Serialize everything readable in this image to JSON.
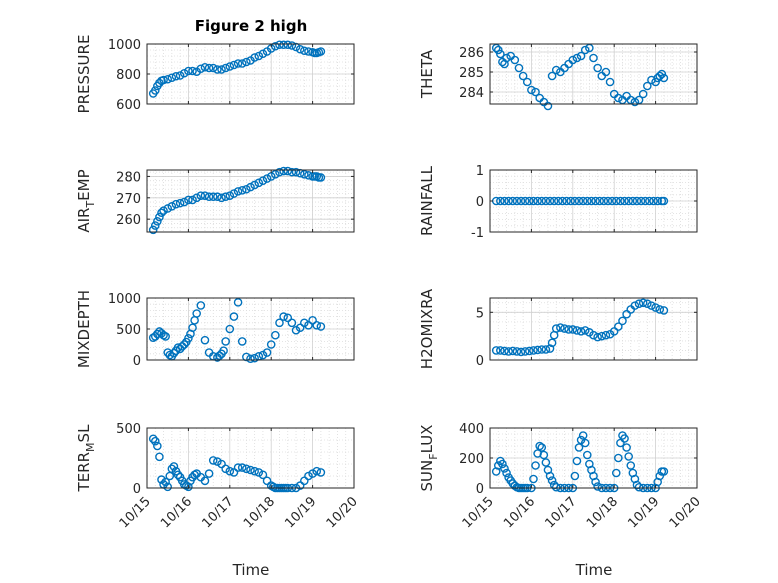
{
  "figure": {
    "title": "Figure 2 high"
  },
  "colors": {
    "marker": "#0072BD",
    "axis": "#262626",
    "grid": "#dcdcdc"
  },
  "chart_data": [
    {
      "id": "pressure",
      "type": "scatter",
      "title": "Figure 2 high",
      "xlabel": "",
      "ylabel": "PRESSURE",
      "xlim": [
        0,
        5
      ],
      "ylim": [
        600,
        1000
      ],
      "yticks": [
        600,
        800,
        1000
      ],
      "ytick_labels": [
        "600",
        "800",
        "1000"
      ],
      "grid": true,
      "x": [
        0.15,
        0.2,
        0.25,
        0.3,
        0.35,
        0.4,
        0.5,
        0.6,
        0.7,
        0.8,
        0.9,
        1.0,
        1.1,
        1.2,
        1.3,
        1.4,
        1.5,
        1.6,
        1.7,
        1.8,
        1.9,
        2.0,
        2.1,
        2.2,
        2.3,
        2.4,
        2.5,
        2.6,
        2.7,
        2.8,
        2.9,
        3.0,
        3.1,
        3.2,
        3.3,
        3.4,
        3.5,
        3.6,
        3.7,
        3.8,
        3.9,
        4.0,
        4.05,
        4.1,
        4.15,
        4.2
      ],
      "y": [
        670,
        690,
        720,
        740,
        755,
        760,
        765,
        775,
        785,
        790,
        805,
        820,
        820,
        815,
        835,
        845,
        840,
        840,
        830,
        830,
        840,
        850,
        860,
        870,
        870,
        880,
        890,
        910,
        920,
        935,
        950,
        970,
        985,
        995,
        995,
        995,
        990,
        980,
        965,
        955,
        950,
        945,
        940,
        940,
        945,
        950
      ]
    },
    {
      "id": "theta",
      "type": "scatter",
      "xlabel": "",
      "ylabel": "THETA",
      "xlim": [
        0,
        5
      ],
      "ylim": [
        283.4,
        286.4
      ],
      "yticks": [
        284,
        285,
        286
      ],
      "ytick_labels": [
        "284",
        "285",
        "286"
      ],
      "grid": true,
      "x": [
        0.15,
        0.2,
        0.25,
        0.3,
        0.35,
        0.4,
        0.5,
        0.6,
        0.7,
        0.8,
        0.9,
        1.0,
        1.1,
        1.2,
        1.3,
        1.4,
        1.5,
        1.6,
        1.7,
        1.8,
        1.9,
        2.0,
        2.1,
        2.2,
        2.3,
        2.4,
        2.5,
        2.6,
        2.7,
        2.8,
        2.9,
        3.0,
        3.1,
        3.2,
        3.3,
        3.4,
        3.5,
        3.6,
        3.7,
        3.8,
        3.9,
        4.0,
        4.05,
        4.1,
        4.15,
        4.2
      ],
      "y": [
        286.2,
        286.1,
        285.9,
        285.5,
        285.4,
        285.7,
        285.8,
        285.6,
        285.2,
        284.8,
        284.5,
        284.1,
        284.0,
        283.7,
        283.5,
        283.3,
        284.8,
        285.1,
        285.0,
        285.2,
        285.4,
        285.6,
        285.7,
        285.8,
        286.1,
        286.2,
        285.7,
        285.2,
        284.8,
        285.0,
        284.5,
        283.9,
        283.7,
        283.6,
        283.8,
        283.6,
        283.5,
        283.6,
        283.9,
        284.3,
        284.6,
        284.5,
        284.7,
        284.8,
        284.9,
        284.7
      ]
    },
    {
      "id": "air_temp",
      "type": "scatter",
      "xlabel": "",
      "ylabel": "AIR_TEMP",
      "ylabel_main": "AIR",
      "ylabel_sub": "T",
      "ylabel_rest": "EMP",
      "xlim": [
        0,
        5
      ],
      "ylim": [
        254,
        283
      ],
      "yticks": [
        260,
        270,
        280
      ],
      "ytick_labels": [
        "260",
        "270",
        "280"
      ],
      "grid": true,
      "x": [
        0.15,
        0.2,
        0.25,
        0.3,
        0.35,
        0.4,
        0.5,
        0.6,
        0.7,
        0.8,
        0.9,
        1.0,
        1.1,
        1.2,
        1.3,
        1.4,
        1.5,
        1.6,
        1.7,
        1.8,
        1.9,
        2.0,
        2.1,
        2.2,
        2.3,
        2.4,
        2.5,
        2.6,
        2.7,
        2.8,
        2.9,
        3.0,
        3.1,
        3.2,
        3.3,
        3.4,
        3.5,
        3.6,
        3.7,
        3.8,
        3.9,
        4.0,
        4.05,
        4.1,
        4.15,
        4.2
      ],
      "y": [
        255,
        257,
        259,
        261,
        263,
        264,
        265,
        266,
        267,
        267.5,
        268,
        269,
        269,
        270,
        271,
        271,
        270.5,
        270.5,
        270.5,
        270,
        270.5,
        271,
        272,
        273,
        273.5,
        274,
        275,
        276,
        277,
        278,
        279,
        280,
        281,
        282,
        282.5,
        282.5,
        282,
        282,
        281.5,
        281,
        280.5,
        280,
        280,
        280,
        279.5,
        279.5
      ]
    },
    {
      "id": "rainfall",
      "type": "scatter",
      "xlabel": "",
      "ylabel": "RAINFALL",
      "xlim": [
        0,
        5
      ],
      "ylim": [
        -1,
        1
      ],
      "yticks": [
        -1,
        0,
        1
      ],
      "ytick_labels": [
        "-1",
        "0",
        "1"
      ],
      "grid": true,
      "x": [
        0.15,
        0.25,
        0.35,
        0.45,
        0.55,
        0.65,
        0.75,
        0.85,
        0.95,
        1.05,
        1.15,
        1.25,
        1.35,
        1.45,
        1.55,
        1.65,
        1.75,
        1.85,
        1.95,
        2.05,
        2.15,
        2.25,
        2.35,
        2.45,
        2.55,
        2.65,
        2.75,
        2.85,
        2.95,
        3.05,
        3.15,
        3.25,
        3.35,
        3.45,
        3.55,
        3.65,
        3.75,
        3.85,
        3.95,
        4.05,
        4.15,
        4.2
      ],
      "y": [
        0,
        0,
        0,
        0,
        0,
        0,
        0,
        0,
        0,
        0,
        0,
        0,
        0,
        0,
        0,
        0,
        0,
        0,
        0,
        0,
        0,
        0,
        0,
        0,
        0,
        0,
        0,
        0,
        0,
        0,
        0,
        0,
        0,
        0,
        0,
        0,
        0,
        0,
        0,
        0,
        0,
        0
      ]
    },
    {
      "id": "mixdepth",
      "type": "scatter",
      "xlabel": "",
      "ylabel": "MIXDEPTH",
      "xlim": [
        0,
        5
      ],
      "ylim": [
        0,
        1000
      ],
      "yticks": [
        0,
        500,
        1000
      ],
      "ytick_labels": [
        "0",
        "500",
        "1000"
      ],
      "grid": true,
      "x": [
        0.15,
        0.2,
        0.25,
        0.3,
        0.35,
        0.4,
        0.45,
        0.5,
        0.55,
        0.6,
        0.65,
        0.7,
        0.75,
        0.8,
        0.85,
        0.9,
        0.95,
        1.0,
        1.05,
        1.1,
        1.15,
        1.2,
        1.3,
        1.4,
        1.5,
        1.6,
        1.7,
        1.75,
        1.8,
        1.85,
        1.9,
        2.0,
        2.1,
        2.2,
        2.3,
        2.4,
        2.5,
        2.6,
        2.7,
        2.8,
        2.9,
        3.0,
        3.1,
        3.2,
        3.3,
        3.4,
        3.5,
        3.6,
        3.7,
        3.8,
        3.9,
        4.0,
        4.1,
        4.2
      ],
      "y": [
        360,
        380,
        420,
        460,
        430,
        400,
        380,
        120,
        80,
        60,
        110,
        150,
        200,
        180,
        220,
        250,
        290,
        350,
        420,
        520,
        640,
        750,
        880,
        320,
        120,
        60,
        40,
        70,
        100,
        150,
        300,
        500,
        700,
        930,
        300,
        50,
        20,
        30,
        60,
        80,
        120,
        250,
        400,
        600,
        700,
        680,
        600,
        480,
        520,
        600,
        560,
        640,
        560,
        540
      ]
    },
    {
      "id": "h2omixra",
      "type": "scatter",
      "xlabel": "",
      "ylabel": "H2OMIXRA",
      "xlim": [
        0,
        5
      ],
      "ylim": [
        0,
        6.5
      ],
      "yticks": [
        0,
        5
      ],
      "ytick_labels": [
        "0",
        "5"
      ],
      "grid": true,
      "x": [
        0.15,
        0.25,
        0.35,
        0.45,
        0.55,
        0.65,
        0.75,
        0.85,
        0.95,
        1.05,
        1.15,
        1.25,
        1.35,
        1.45,
        1.5,
        1.55,
        1.6,
        1.7,
        1.8,
        1.9,
        2.0,
        2.1,
        2.2,
        2.3,
        2.4,
        2.5,
        2.6,
        2.7,
        2.8,
        2.9,
        3.0,
        3.1,
        3.2,
        3.3,
        3.4,
        3.5,
        3.6,
        3.7,
        3.8,
        3.9,
        4.0,
        4.1,
        4.2
      ],
      "y": [
        1.0,
        1.0,
        0.95,
        0.9,
        0.95,
        0.9,
        0.85,
        0.9,
        0.95,
        1.0,
        1.05,
        1.1,
        1.1,
        1.2,
        1.8,
        2.6,
        3.3,
        3.4,
        3.3,
        3.2,
        3.2,
        3.1,
        3.0,
        3.1,
        2.9,
        2.6,
        2.4,
        2.5,
        2.6,
        2.7,
        3.0,
        3.5,
        4.1,
        4.8,
        5.3,
        5.7,
        5.9,
        6.0,
        5.9,
        5.7,
        5.5,
        5.3,
        5.2
      ]
    },
    {
      "id": "terr_msl",
      "type": "scatter",
      "xlabel": "",
      "ylabel": "TERR_MSL",
      "ylabel_main": "TERR",
      "ylabel_sub": "M",
      "ylabel_rest": "SL",
      "xlim": [
        0,
        5
      ],
      "ylim": [
        0,
        500
      ],
      "yticks": [
        0,
        500
      ],
      "ytick_labels": [
        "0",
        "500"
      ],
      "grid": true,
      "x": [
        0.15,
        0.2,
        0.25,
        0.3,
        0.35,
        0.4,
        0.45,
        0.5,
        0.55,
        0.6,
        0.65,
        0.7,
        0.75,
        0.8,
        0.85,
        0.9,
        0.95,
        1.0,
        1.05,
        1.1,
        1.15,
        1.2,
        1.3,
        1.4,
        1.5,
        1.6,
        1.7,
        1.8,
        1.9,
        2.0,
        2.1,
        2.2,
        2.3,
        2.4,
        2.5,
        2.6,
        2.7,
        2.8,
        2.9,
        3.0,
        3.05,
        3.1,
        3.15,
        3.2,
        3.25,
        3.3,
        3.35,
        3.4,
        3.5,
        3.6,
        3.7,
        3.8,
        3.9,
        4.0,
        4.1,
        4.2
      ],
      "y": [
        410,
        390,
        350,
        260,
        70,
        30,
        50,
        10,
        100,
        160,
        180,
        140,
        110,
        90,
        60,
        30,
        20,
        10,
        60,
        90,
        110,
        120,
        90,
        60,
        120,
        230,
        220,
        200,
        160,
        140,
        130,
        170,
        170,
        160,
        150,
        140,
        130,
        110,
        60,
        20,
        10,
        0,
        0,
        0,
        0,
        0,
        0,
        0,
        0,
        0,
        20,
        60,
        100,
        120,
        140,
        130
      ]
    },
    {
      "id": "sun_flux",
      "type": "scatter",
      "xlabel": "",
      "ylabel": "SUN_FLUX",
      "ylabel_main": "SUN",
      "ylabel_sub": "F",
      "ylabel_rest": "LUX",
      "xlim": [
        0,
        5
      ],
      "ylim": [
        0,
        400
      ],
      "yticks": [
        0,
        200,
        400
      ],
      "ytick_labels": [
        "0",
        "200",
        "400"
      ],
      "grid": true,
      "x": [
        0.15,
        0.2,
        0.25,
        0.3,
        0.35,
        0.4,
        0.45,
        0.5,
        0.55,
        0.6,
        0.65,
        0.7,
        0.75,
        0.8,
        0.85,
        0.9,
        1.0,
        1.05,
        1.1,
        1.15,
        1.2,
        1.25,
        1.3,
        1.35,
        1.4,
        1.45,
        1.5,
        1.55,
        1.6,
        1.7,
        1.8,
        1.9,
        2.0,
        2.05,
        2.1,
        2.15,
        2.2,
        2.25,
        2.3,
        2.35,
        2.4,
        2.45,
        2.5,
        2.55,
        2.6,
        2.7,
        2.8,
        2.9,
        3.0,
        3.05,
        3.1,
        3.15,
        3.2,
        3.25,
        3.3,
        3.35,
        3.4,
        3.45,
        3.5,
        3.55,
        3.6,
        3.7,
        3.8,
        3.9,
        4.0,
        4.05,
        4.1,
        4.15,
        4.2
      ],
      "y": [
        110,
        150,
        180,
        160,
        130,
        100,
        70,
        50,
        30,
        15,
        5,
        0,
        0,
        0,
        0,
        0,
        0,
        60,
        150,
        230,
        280,
        270,
        220,
        170,
        120,
        80,
        50,
        20,
        5,
        0,
        0,
        0,
        0,
        80,
        180,
        270,
        320,
        350,
        300,
        220,
        160,
        120,
        80,
        40,
        10,
        0,
        0,
        0,
        0,
        100,
        200,
        300,
        350,
        330,
        270,
        210,
        150,
        100,
        60,
        20,
        5,
        0,
        0,
        0,
        0,
        40,
        80,
        110,
        110
      ]
    }
  ],
  "x_axis": {
    "label": "Time",
    "ticks": [
      0,
      1,
      2,
      3,
      4,
      5
    ],
    "tick_labels": [
      "10/15",
      "10/16",
      "10/17",
      "10/18",
      "10/19",
      "10/20"
    ]
  }
}
